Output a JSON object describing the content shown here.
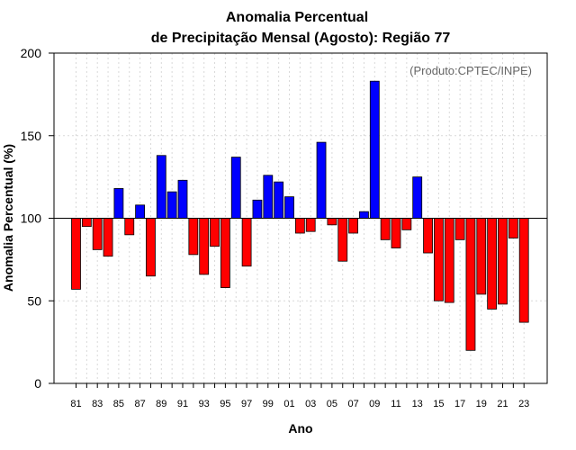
{
  "chart_data": {
    "type": "bar",
    "title": [
      "Anomalia Percentual",
      "de Precipitação Mensal (Agosto): Região 77"
    ],
    "credit": "(Produto:CPTEC/INPE)",
    "xlabel": "Ano",
    "ylabel": "Anomalia Percentual (%)",
    "ylim": [
      0,
      200
    ],
    "yticks": [
      0,
      50,
      100,
      150,
      200
    ],
    "baseline": 100,
    "categories": [
      "81",
      "82",
      "83",
      "84",
      "85",
      "86",
      "87",
      "88",
      "89",
      "90",
      "91",
      "92",
      "93",
      "94",
      "95",
      "96",
      "97",
      "98",
      "99",
      "00",
      "01",
      "02",
      "03",
      "04",
      "05",
      "06",
      "07",
      "08",
      "09",
      "10",
      "11",
      "12",
      "13",
      "14",
      "15",
      "16",
      "17",
      "18",
      "19",
      "20",
      "21",
      "22",
      "23"
    ],
    "xtick_labels": [
      "81",
      "83",
      "85",
      "87",
      "89",
      "91",
      "93",
      "95",
      "97",
      "99",
      "01",
      "03",
      "05",
      "07",
      "09",
      "11",
      "13",
      "15",
      "17",
      "19",
      "21",
      "23"
    ],
    "values": [
      57,
      95,
      81,
      77,
      118,
      90,
      108,
      65,
      138,
      116,
      123,
      78,
      66,
      83,
      58,
      137,
      71,
      111,
      126,
      122,
      113,
      91,
      92,
      146,
      96,
      74,
      91,
      104,
      183,
      87,
      82,
      93,
      125,
      79,
      50,
      49,
      87,
      20,
      54,
      45,
      48,
      88,
      37
    ],
    "colors": {
      "above": "#0000ff",
      "below": "#ff0000",
      "stroke": "#000000"
    },
    "grid": true
  }
}
